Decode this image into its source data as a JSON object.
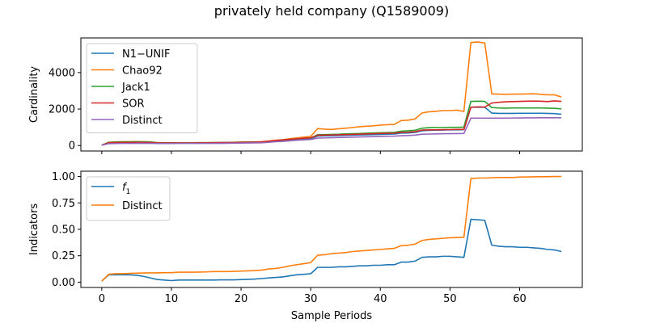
{
  "figure_title": "privately held company (Q1589009)",
  "colors": {
    "blue": "#1f77b4",
    "orange": "#ff7f0e",
    "green": "#2ca02c",
    "red": "#d62728",
    "purple": "#9467bd"
  },
  "chart_data": [
    {
      "type": "line",
      "name": "top",
      "ylabel": "Cardinality",
      "xlabel": "",
      "xlim": [
        -3,
        69
      ],
      "ylim": [
        -300,
        5900
      ],
      "xticks": [
        0,
        10,
        20,
        30,
        40,
        50,
        60
      ],
      "yticks": [
        0,
        2000,
        4000
      ],
      "legend_position": "upper-left",
      "x": [
        0,
        1,
        2,
        3,
        4,
        5,
        6,
        7,
        8,
        9,
        10,
        11,
        12,
        13,
        14,
        15,
        16,
        17,
        18,
        19,
        20,
        21,
        22,
        23,
        24,
        25,
        26,
        27,
        28,
        29,
        30,
        31,
        32,
        33,
        34,
        35,
        36,
        37,
        38,
        39,
        40,
        41,
        42,
        43,
        44,
        45,
        46,
        47,
        48,
        49,
        50,
        51,
        52,
        53,
        54,
        55,
        56,
        57,
        58,
        59,
        60,
        61,
        62,
        63,
        64,
        65,
        66
      ],
      "series": [
        {
          "name": "N1−UNIF",
          "color": "#1f77b4",
          "values": [
            20,
            140,
            150,
            155,
            160,
            160,
            155,
            150,
            130,
            130,
            130,
            130,
            135,
            135,
            140,
            140,
            145,
            150,
            150,
            160,
            170,
            175,
            180,
            185,
            210,
            240,
            270,
            300,
            330,
            360,
            380,
            520,
            530,
            540,
            550,
            560,
            570,
            580,
            590,
            600,
            610,
            620,
            630,
            680,
            690,
            720,
            810,
            830,
            840,
            850,
            860,
            860,
            870,
            2100,
            2100,
            2100,
            1780,
            1760,
            1760,
            1760,
            1770,
            1770,
            1770,
            1770,
            1760,
            1750,
            1720
          ]
        },
        {
          "name": "Chao92",
          "color": "#ff7f0e",
          "values": [
            20,
            180,
            200,
            210,
            210,
            220,
            210,
            200,
            160,
            150,
            150,
            150,
            150,
            150,
            155,
            155,
            160,
            170,
            175,
            180,
            190,
            195,
            200,
            210,
            250,
            290,
            320,
            380,
            420,
            460,
            500,
            930,
            900,
            880,
            920,
            950,
            990,
            1030,
            1060,
            1080,
            1120,
            1140,
            1160,
            1370,
            1390,
            1460,
            1790,
            1850,
            1880,
            1920,
            1920,
            1940,
            1870,
            5650,
            5680,
            5620,
            2830,
            2820,
            2810,
            2820,
            2820,
            2830,
            2840,
            2810,
            2780,
            2780,
            2660
          ]
        },
        {
          "name": "Jack1",
          "color": "#2ca02c",
          "values": [
            20,
            170,
            190,
            200,
            200,
            205,
            200,
            190,
            155,
            150,
            150,
            150,
            150,
            150,
            155,
            155,
            160,
            165,
            170,
            175,
            185,
            190,
            195,
            200,
            230,
            270,
            300,
            340,
            370,
            400,
            420,
            590,
            600,
            610,
            620,
            640,
            650,
            660,
            680,
            690,
            700,
            710,
            720,
            790,
            810,
            840,
            950,
            980,
            990,
            990,
            1000,
            1000,
            1010,
            2420,
            2430,
            2420,
            2080,
            2060,
            2050,
            2060,
            2060,
            2060,
            2060,
            2060,
            2050,
            2040,
            2010
          ]
        },
        {
          "name": "SOR",
          "color": "#d62728",
          "values": [
            20,
            150,
            160,
            170,
            170,
            175,
            170,
            165,
            140,
            140,
            140,
            140,
            140,
            140,
            145,
            145,
            150,
            155,
            160,
            165,
            175,
            180,
            185,
            200,
            240,
            280,
            310,
            340,
            370,
            400,
            420,
            560,
            570,
            580,
            590,
            600,
            610,
            620,
            640,
            650,
            660,
            670,
            680,
            720,
            730,
            760,
            850,
            860,
            860,
            870,
            870,
            880,
            880,
            2100,
            2120,
            2110,
            2330,
            2370,
            2400,
            2410,
            2420,
            2430,
            2440,
            2430,
            2410,
            2450,
            2420
          ]
        },
        {
          "name": "Distinct",
          "color": "#9467bd",
          "values": [
            20,
            100,
            110,
            115,
            115,
            120,
            120,
            120,
            110,
            110,
            110,
            115,
            115,
            115,
            115,
            115,
            120,
            120,
            125,
            130,
            135,
            140,
            145,
            150,
            180,
            210,
            230,
            260,
            290,
            310,
            330,
            410,
            420,
            430,
            440,
            450,
            460,
            470,
            480,
            490,
            500,
            510,
            515,
            540,
            550,
            570,
            620,
            630,
            640,
            650,
            650,
            655,
            660,
            1500,
            1500,
            1500,
            1500,
            1500,
            1505,
            1510,
            1515,
            1520,
            1520,
            1525,
            1525,
            1525,
            1525
          ]
        }
      ]
    },
    {
      "type": "line",
      "name": "bottom",
      "ylabel": "Indicators",
      "xlabel": "Sample Periods",
      "xlim": [
        -3,
        69
      ],
      "ylim": [
        -0.05,
        1.05
      ],
      "xticks": [
        0,
        10,
        20,
        30,
        40,
        50,
        60
      ],
      "yticks": [
        0.0,
        0.25,
        0.5,
        0.75,
        1.0
      ],
      "ytick_labels": [
        "0.00",
        "0.25",
        "0.50",
        "0.75",
        "1.00"
      ],
      "legend_position": "upper-left",
      "x": [
        0,
        1,
        2,
        3,
        4,
        5,
        6,
        7,
        8,
        9,
        10,
        11,
        12,
        13,
        14,
        15,
        16,
        17,
        18,
        19,
        20,
        21,
        22,
        23,
        24,
        25,
        26,
        27,
        28,
        29,
        30,
        31,
        32,
        33,
        34,
        35,
        36,
        37,
        38,
        39,
        40,
        41,
        42,
        43,
        44,
        45,
        46,
        47,
        48,
        49,
        50,
        51,
        52,
        53,
        54,
        55,
        56,
        57,
        58,
        59,
        60,
        61,
        62,
        63,
        64,
        65,
        66
      ],
      "series": [
        {
          "name": "f1",
          "label_base": "f",
          "label_sub": "1",
          "color": "#1f77b4",
          "values": [
            0.01,
            0.07,
            0.07,
            0.07,
            0.07,
            0.065,
            0.055,
            0.04,
            0.025,
            0.02,
            0.015,
            0.02,
            0.02,
            0.02,
            0.02,
            0.02,
            0.02,
            0.022,
            0.022,
            0.022,
            0.025,
            0.027,
            0.03,
            0.035,
            0.04,
            0.045,
            0.05,
            0.06,
            0.07,
            0.075,
            0.08,
            0.14,
            0.14,
            0.14,
            0.145,
            0.145,
            0.15,
            0.155,
            0.155,
            0.16,
            0.16,
            0.165,
            0.165,
            0.19,
            0.19,
            0.2,
            0.235,
            0.24,
            0.24,
            0.245,
            0.245,
            0.24,
            0.235,
            0.595,
            0.59,
            0.585,
            0.35,
            0.34,
            0.335,
            0.335,
            0.33,
            0.33,
            0.325,
            0.32,
            0.31,
            0.305,
            0.29
          ]
        },
        {
          "name": "Distinct",
          "color": "#ff7f0e",
          "values": [
            0.01,
            0.075,
            0.08,
            0.08,
            0.083,
            0.085,
            0.087,
            0.088,
            0.088,
            0.09,
            0.09,
            0.095,
            0.095,
            0.095,
            0.096,
            0.097,
            0.1,
            0.1,
            0.1,
            0.102,
            0.105,
            0.107,
            0.11,
            0.115,
            0.125,
            0.13,
            0.14,
            0.155,
            0.165,
            0.175,
            0.185,
            0.255,
            0.26,
            0.27,
            0.275,
            0.28,
            0.29,
            0.295,
            0.3,
            0.305,
            0.31,
            0.315,
            0.32,
            0.345,
            0.35,
            0.36,
            0.395,
            0.405,
            0.41,
            0.415,
            0.42,
            0.422,
            0.425,
            0.98,
            0.985,
            0.985,
            0.988,
            0.99,
            0.99,
            0.99,
            0.995,
            0.995,
            0.997,
            0.998,
            0.998,
            1.0,
            1.0
          ]
        }
      ]
    }
  ]
}
